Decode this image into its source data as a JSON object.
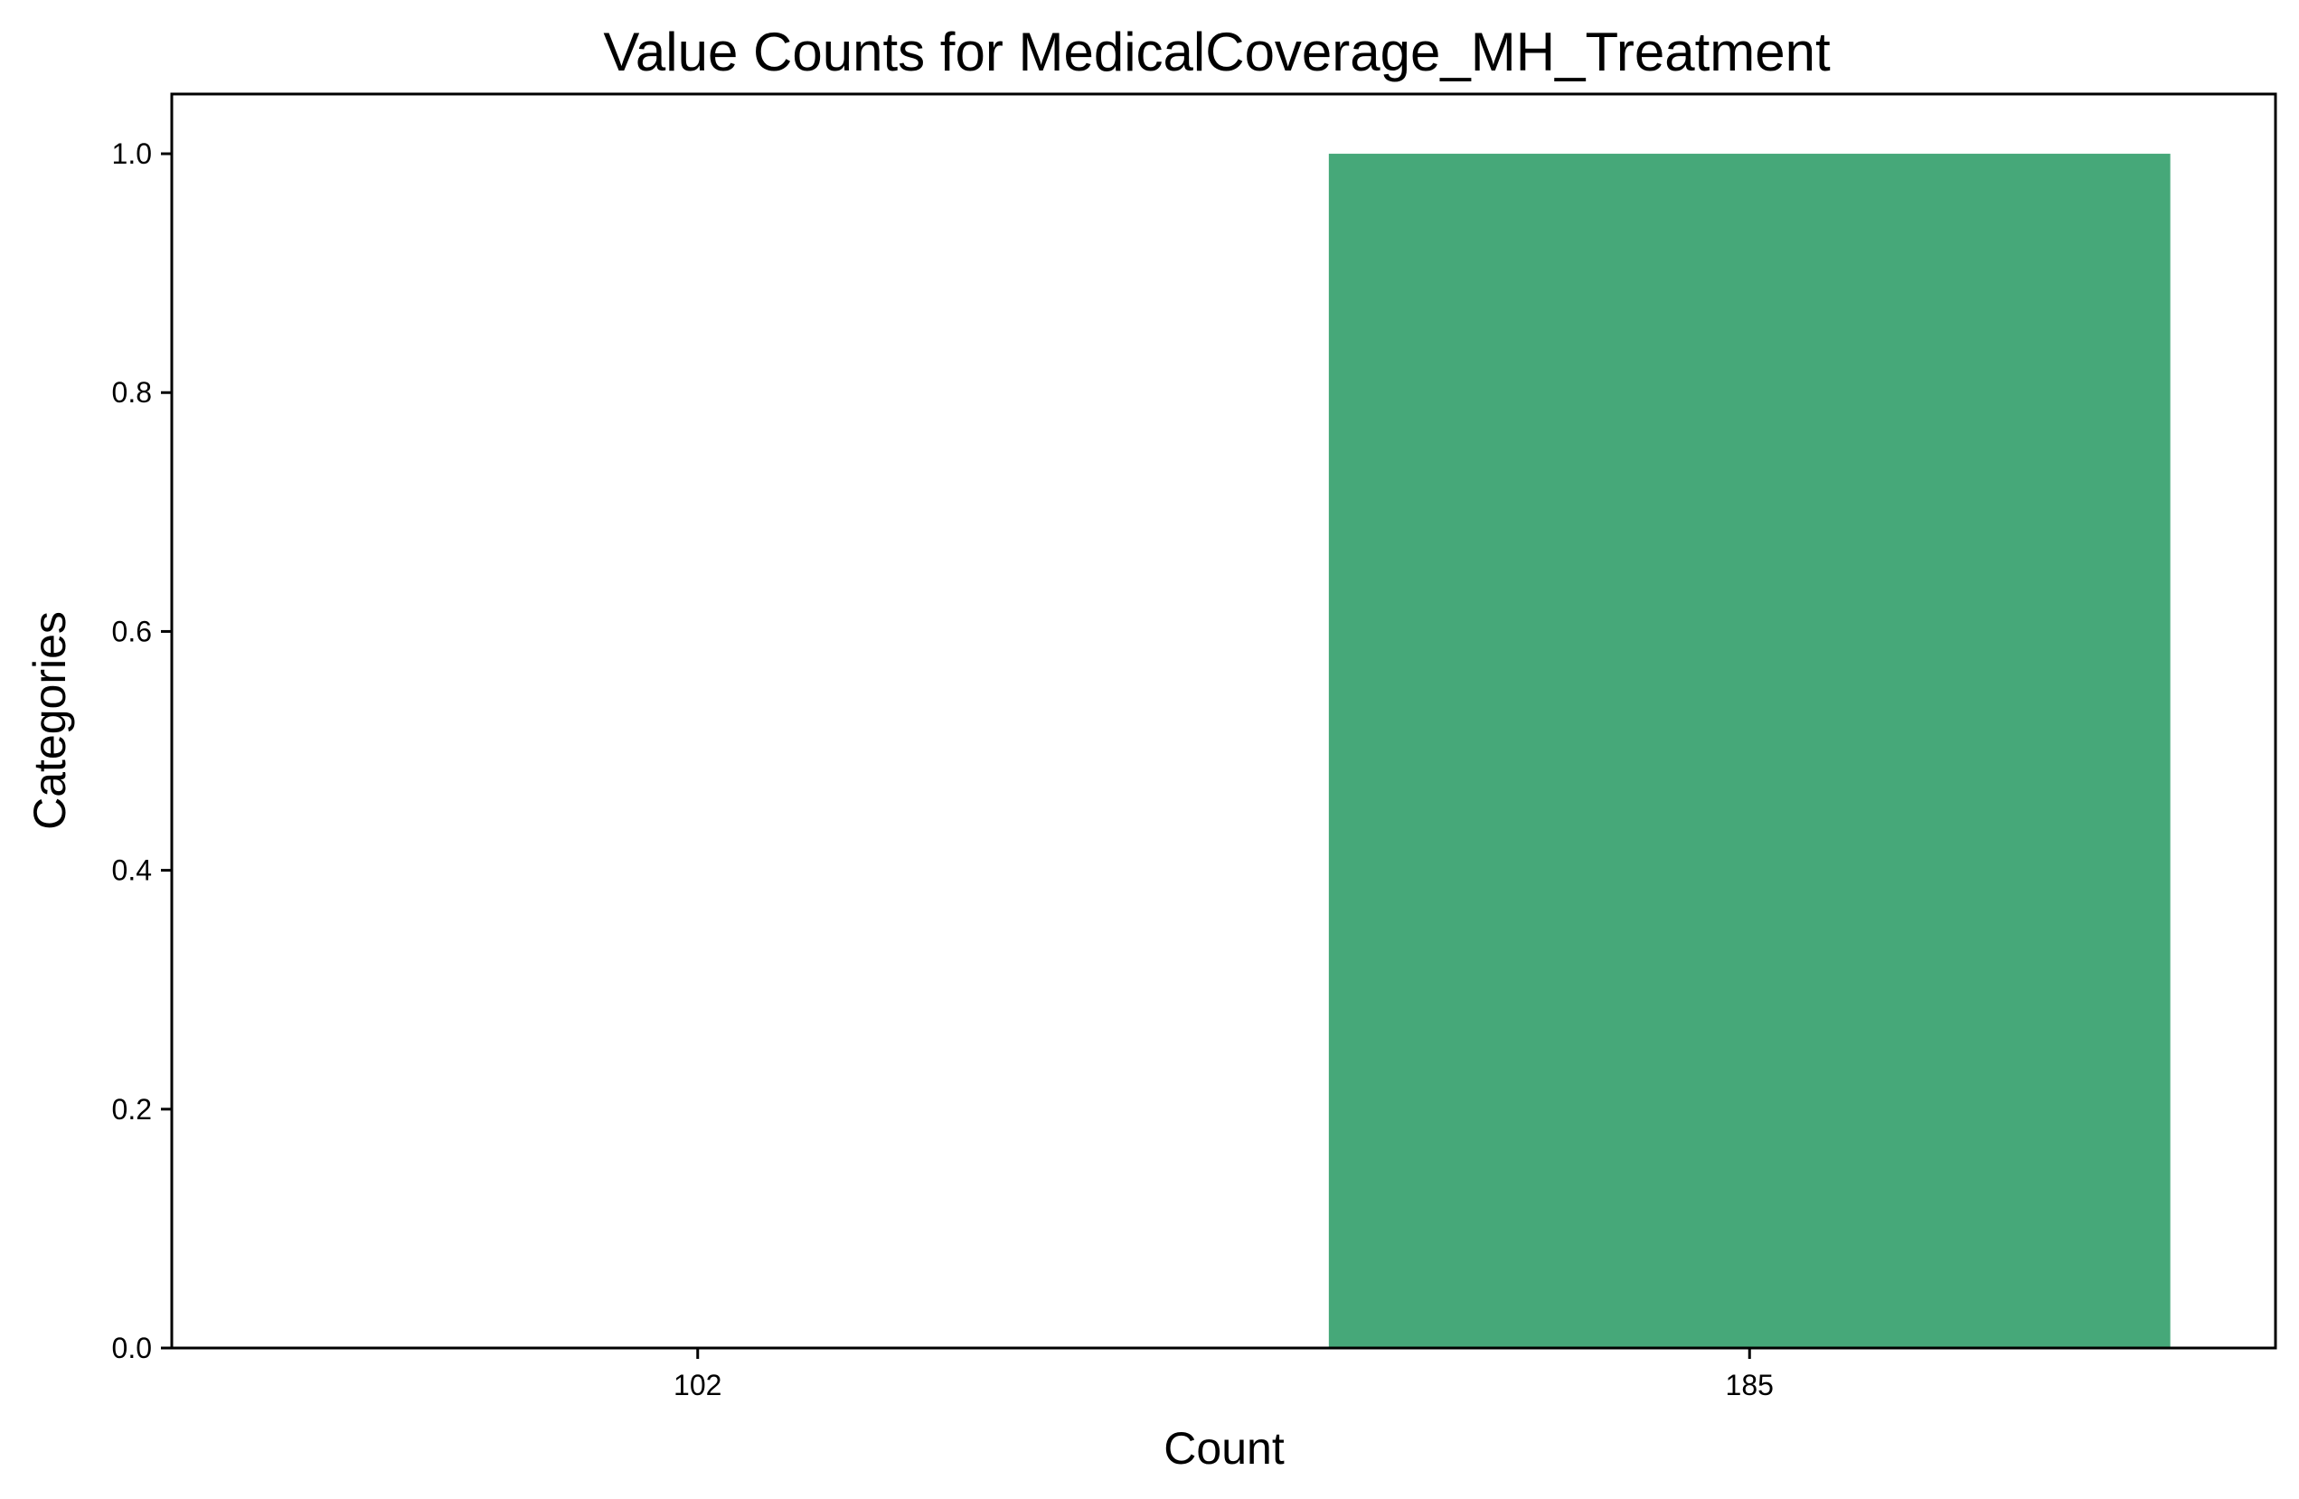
{
  "chart_data": {
    "type": "bar",
    "title": "Value Counts for MedicalCoverage_MH_Treatment",
    "xlabel": "Count",
    "ylabel": "Categories",
    "categories": [
      "102",
      "185"
    ],
    "values": [
      0,
      1
    ],
    "ylim": [
      0,
      1.05
    ],
    "yticks": [
      "0.0",
      "0.2",
      "0.4",
      "0.6",
      "0.8",
      "1.0"
    ],
    "ytick_values": [
      0,
      0.2,
      0.4,
      0.6,
      0.8,
      1.0
    ],
    "grid": false,
    "legend": "none",
    "colors": {
      "bar": "#46a879",
      "axes": "#000000",
      "background": "#ffffff"
    }
  }
}
